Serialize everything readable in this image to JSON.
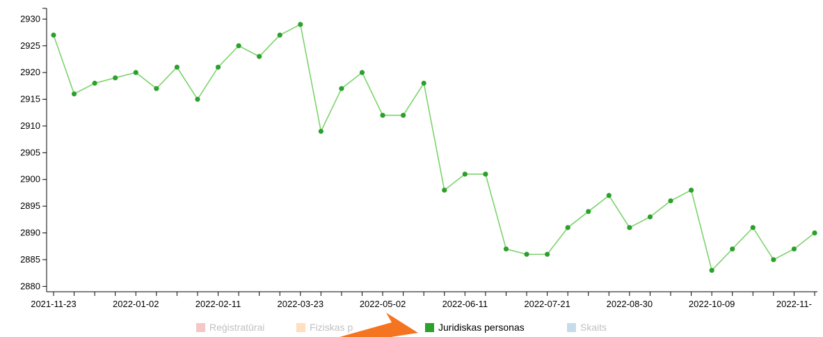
{
  "chart_data": {
    "type": "line",
    "xlabel": "",
    "ylabel": "",
    "ylim": [
      2879,
      2932
    ],
    "yticks": [
      2880,
      2885,
      2890,
      2895,
      2900,
      2905,
      2910,
      2915,
      2920,
      2925,
      2930
    ],
    "x_tick_labels": [
      "2021-11-23",
      "2022-01-02",
      "2022-02-11",
      "2022-03-23",
      "2022-05-02",
      "2022-06-11",
      "2022-07-21",
      "2022-08-30",
      "2022-10-09",
      "2022-11-"
    ],
    "grid": false,
    "legend_position": "bottom",
    "series": [
      {
        "name": "Juridiskas personas",
        "color": "#2ca02c",
        "line_color": "#7bd36b",
        "values": [
          2927,
          2916,
          2918,
          2919,
          2920,
          2917,
          2921,
          2915,
          2921,
          2925,
          2923,
          2927,
          2929,
          2909,
          2917,
          2920,
          2912,
          2912,
          2918,
          2898,
          2901,
          2901,
          2887,
          2886,
          2886,
          2891,
          2894,
          2897,
          2891,
          2893,
          2896,
          2898,
          2883,
          2887,
          2891,
          2885,
          2887,
          2890
        ]
      }
    ]
  },
  "legend": [
    {
      "label": "Reģistratūrai",
      "color": "#d62728",
      "active": false
    },
    {
      "label": "Fiziskas p",
      "color": "#ff7f0e",
      "active": false
    },
    {
      "label": "Juridiskas personas",
      "color": "#2ca02c",
      "active": true
    },
    {
      "label": "Skaits",
      "color": "#1f77b4",
      "active": false
    }
  ],
  "colors": {
    "arrow": "#f4741f"
  }
}
